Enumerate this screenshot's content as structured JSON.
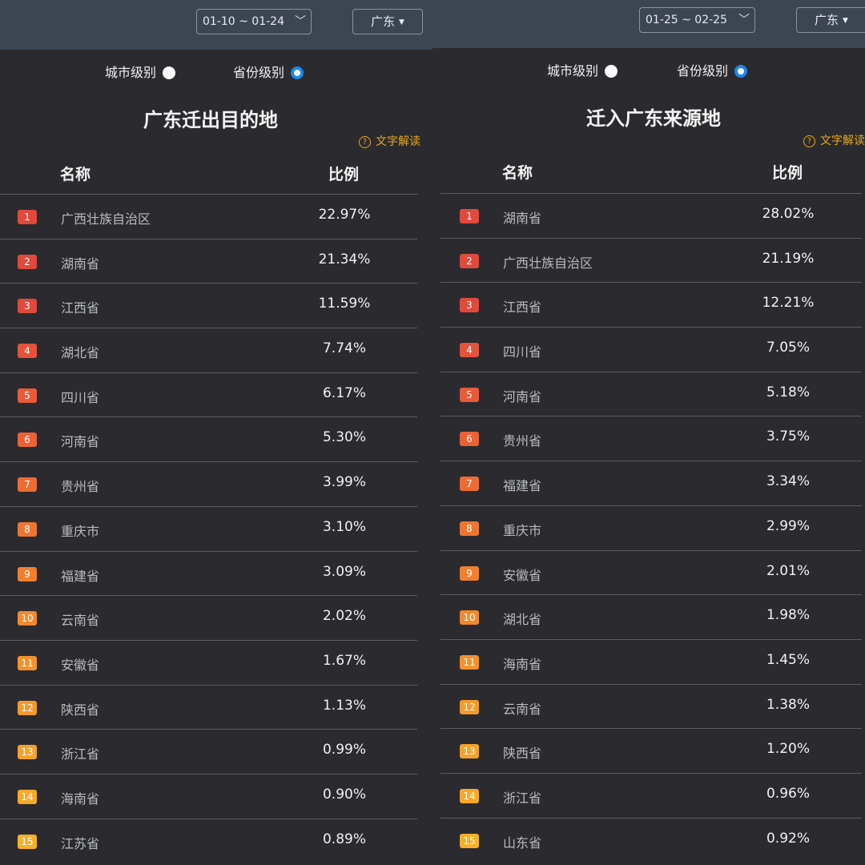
{
  "badge_colors": [
    "#e04a3c",
    "#e04a3c",
    "#e04a3c",
    "#e5533a",
    "#e85a38",
    "#ea6236",
    "#ec6c34",
    "#ee7632",
    "#f08030",
    "#f2892e",
    "#f3922c",
    "#f49a2b",
    "#f5a22a",
    "#f6a929",
    "#f6b028"
  ],
  "panels": [
    {
      "date_range": "01-10 ~ 01-24",
      "region": "广东",
      "radio_city": "城市级别",
      "radio_province": "省份级别",
      "title": "广东迁出目的地",
      "explain": "文字解读",
      "col_name": "名称",
      "col_ratio": "比例",
      "rows": [
        {
          "rank": "1",
          "name": "广西壮族自治区",
          "value": "22.97%"
        },
        {
          "rank": "2",
          "name": "湖南省",
          "value": "21.34%"
        },
        {
          "rank": "3",
          "name": "江西省",
          "value": "11.59%"
        },
        {
          "rank": "4",
          "name": "湖北省",
          "value": "7.74%"
        },
        {
          "rank": "5",
          "name": "四川省",
          "value": "6.17%"
        },
        {
          "rank": "6",
          "name": "河南省",
          "value": "5.30%"
        },
        {
          "rank": "7",
          "name": "贵州省",
          "value": "3.99%"
        },
        {
          "rank": "8",
          "name": "重庆市",
          "value": "3.10%"
        },
        {
          "rank": "9",
          "name": "福建省",
          "value": "3.09%"
        },
        {
          "rank": "10",
          "name": "云南省",
          "value": "2.02%"
        },
        {
          "rank": "11",
          "name": "安徽省",
          "value": "1.67%"
        },
        {
          "rank": "12",
          "name": "陕西省",
          "value": "1.13%"
        },
        {
          "rank": "13",
          "name": "浙江省",
          "value": "0.99%"
        },
        {
          "rank": "14",
          "name": "海南省",
          "value": "0.90%"
        },
        {
          "rank": "15",
          "name": "江苏省",
          "value": "0.89%"
        }
      ]
    },
    {
      "date_range": "01-25 ~ 02-25",
      "region": "广东",
      "radio_city": "城市级别",
      "radio_province": "省份级别",
      "title": "迁入广东来源地",
      "explain": "文字解读",
      "col_name": "名称",
      "col_ratio": "比例",
      "rows": [
        {
          "rank": "1",
          "name": "湖南省",
          "value": "28.02%"
        },
        {
          "rank": "2",
          "name": "广西壮族自治区",
          "value": "21.19%"
        },
        {
          "rank": "3",
          "name": "江西省",
          "value": "12.21%"
        },
        {
          "rank": "4",
          "name": "四川省",
          "value": "7.05%"
        },
        {
          "rank": "5",
          "name": "河南省",
          "value": "5.18%"
        },
        {
          "rank": "6",
          "name": "贵州省",
          "value": "3.75%"
        },
        {
          "rank": "7",
          "name": "福建省",
          "value": "3.34%"
        },
        {
          "rank": "8",
          "name": "重庆市",
          "value": "2.99%"
        },
        {
          "rank": "9",
          "name": "安徽省",
          "value": "2.01%"
        },
        {
          "rank": "10",
          "name": "湖北省",
          "value": "1.98%"
        },
        {
          "rank": "11",
          "name": "海南省",
          "value": "1.45%"
        },
        {
          "rank": "12",
          "name": "云南省",
          "value": "1.38%"
        },
        {
          "rank": "13",
          "name": "陕西省",
          "value": "1.20%"
        },
        {
          "rank": "14",
          "name": "浙江省",
          "value": "0.96%"
        },
        {
          "rank": "15",
          "name": "山东省",
          "value": "0.92%"
        }
      ]
    }
  ]
}
